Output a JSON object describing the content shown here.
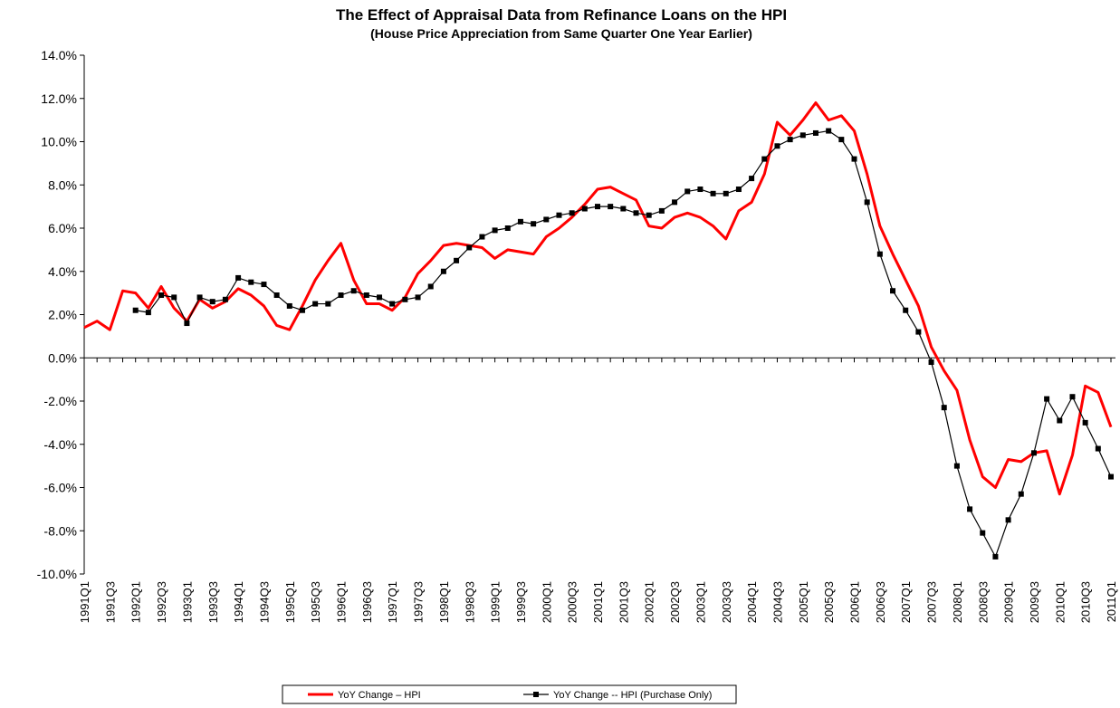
{
  "chart_data": {
    "type": "line",
    "title": "The Effect of Appraisal Data from Refinance Loans on the HPI",
    "subtitle": "(House Price Appreciation from Same Quarter One Year Earlier)",
    "categories": [
      "1991Q1",
      null,
      "1991Q3",
      null,
      "1992Q1",
      null,
      "1992Q3",
      null,
      "1993Q1",
      null,
      "1993Q3",
      null,
      "1994Q1",
      null,
      "1994Q3",
      null,
      "1995Q1",
      null,
      "1995Q3",
      null,
      "1996Q1",
      null,
      "1996Q3",
      null,
      "1997Q1",
      null,
      "1997Q3",
      null,
      "1998Q1",
      null,
      "1998Q3",
      null,
      "1999Q1",
      null,
      "1999Q3",
      null,
      "2000Q1",
      null,
      "2000Q3",
      null,
      "2001Q1",
      null,
      "2001Q3",
      null,
      "2002Q1",
      null,
      "2002Q3",
      null,
      "2003Q1",
      null,
      "2003Q3",
      null,
      "2004Q1",
      null,
      "2004Q3",
      null,
      "2005Q1",
      null,
      "2005Q3",
      null,
      "2006Q1",
      null,
      "2006Q3",
      null,
      "2007Q1",
      null,
      "2007Q3",
      null,
      "2008Q1",
      null,
      "2008Q3",
      null,
      "2009Q1",
      null,
      "2009Q3",
      null,
      "2010Q1",
      null,
      "2010Q3",
      null,
      "2011Q1"
    ],
    "series": [
      {
        "name": "YoY Change – HPI",
        "color": "#ff0000",
        "marker": false,
        "values": [
          1.4,
          1.7,
          1.3,
          3.1,
          3.0,
          2.3,
          3.3,
          2.3,
          1.7,
          2.7,
          2.3,
          2.6,
          3.2,
          2.9,
          2.4,
          1.5,
          1.3,
          2.4,
          3.6,
          4.5,
          5.3,
          3.6,
          2.5,
          2.5,
          2.2,
          2.8,
          3.9,
          4.5,
          5.2,
          5.3,
          5.2,
          5.1,
          4.6,
          5.0,
          4.9,
          4.8,
          5.6,
          6.0,
          6.5,
          7.1,
          7.8,
          7.9,
          7.6,
          7.3,
          6.1,
          6.0,
          6.5,
          6.7,
          6.5,
          6.1,
          5.5,
          6.8,
          7.2,
          8.5,
          10.9,
          10.3,
          11.0,
          11.8,
          11.0,
          11.2,
          10.5,
          8.5,
          6.1,
          4.8,
          3.6,
          2.4,
          0.5,
          -0.6,
          -1.5,
          -3.8,
          -5.5,
          -6.0,
          -4.7,
          -4.8,
          -4.4,
          -4.3,
          -6.3,
          -4.5,
          -1.3,
          -1.6,
          -3.2
        ]
      },
      {
        "name": "YoY Change -- HPI (Purchase Only)",
        "color": "#000000",
        "marker": true,
        "values": [
          null,
          null,
          null,
          null,
          2.2,
          2.1,
          2.9,
          2.8,
          1.6,
          2.8,
          2.6,
          2.7,
          3.7,
          3.5,
          3.4,
          2.9,
          2.4,
          2.2,
          2.5,
          2.5,
          2.9,
          3.1,
          2.9,
          2.8,
          2.5,
          2.7,
          2.8,
          3.3,
          4.0,
          4.5,
          5.1,
          5.6,
          5.9,
          6.0,
          6.3,
          6.2,
          6.4,
          6.6,
          6.7,
          6.9,
          7.0,
          7.0,
          6.9,
          6.7,
          6.6,
          6.8,
          7.2,
          7.7,
          7.8,
          7.6,
          7.6,
          7.8,
          8.3,
          9.2,
          9.8,
          10.1,
          10.3,
          10.4,
          10.5,
          10.1,
          9.2,
          7.2,
          4.8,
          3.1,
          2.2,
          1.2,
          -0.2,
          -2.3,
          -5.0,
          -7.0,
          -8.1,
          -9.2,
          -7.5,
          -6.3,
          -4.4,
          -1.9,
          -2.9,
          -1.8,
          -3.0,
          -4.2,
          -5.5
        ]
      }
    ],
    "ylim": [
      -10,
      14
    ],
    "yticks": [
      {
        "value": -10,
        "label": "-10.0%"
      },
      {
        "value": -8,
        "label": "-8.0%"
      },
      {
        "value": -6,
        "label": "-6.0%"
      },
      {
        "value": -4,
        "label": "-4.0%"
      },
      {
        "value": -2,
        "label": "-2.0%"
      },
      {
        "value": 0,
        "label": "0.0%"
      },
      {
        "value": 2,
        "label": "2.0%"
      },
      {
        "value": 4,
        "label": "4.0%"
      },
      {
        "value": 6,
        "label": "6.0%"
      },
      {
        "value": 8,
        "label": "8.0%"
      },
      {
        "value": 10,
        "label": "10.0%"
      },
      {
        "value": 12,
        "label": "12.0%"
      },
      {
        "value": 14,
        "label": "14.0%"
      }
    ],
    "grid": false,
    "legend": "bottom"
  }
}
